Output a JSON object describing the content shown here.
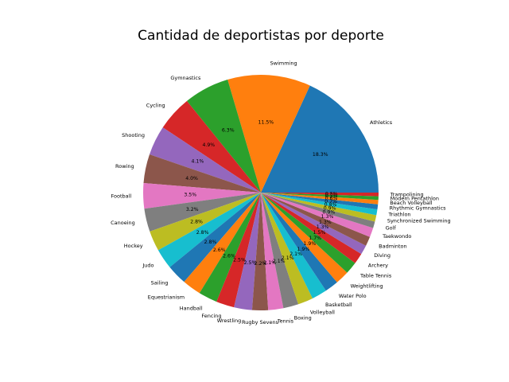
{
  "chart_data": {
    "type": "pie",
    "title": "Cantidad de deportistas por deporte",
    "start_angle_deg": 0,
    "direction": "counterclockwise",
    "colors": [
      "#1f77b4",
      "#ff7f0e",
      "#2ca02c",
      "#d62728",
      "#9467bd",
      "#8c564b",
      "#e377c2",
      "#7f7f7f",
      "#bcbd22",
      "#17becf"
    ],
    "slices": [
      {
        "label": "Athletics",
        "value": 18.3,
        "pct_label": "18.3%"
      },
      {
        "label": "Swimming",
        "value": 11.5,
        "pct_label": "11.5%"
      },
      {
        "label": "Gymnastics",
        "value": 6.3,
        "pct_label": "6.3%"
      },
      {
        "label": "Cycling",
        "value": 4.9,
        "pct_label": "4.9%"
      },
      {
        "label": "Shooting",
        "value": 4.1,
        "pct_label": "4.1%"
      },
      {
        "label": "Rowing",
        "value": 4.0,
        "pct_label": "4.0%"
      },
      {
        "label": "Football",
        "value": 3.5,
        "pct_label": "3.5%"
      },
      {
        "label": "Canoeing",
        "value": 3.2,
        "pct_label": "3.2%"
      },
      {
        "label": "Hockey",
        "value": 2.8,
        "pct_label": "2.8%"
      },
      {
        "label": "Judo",
        "value": 2.8,
        "pct_label": "2.8%"
      },
      {
        "label": "Sailing",
        "value": 2.8,
        "pct_label": "2.8%"
      },
      {
        "label": "Equestrianism",
        "value": 2.6,
        "pct_label": "2.6%"
      },
      {
        "label": "Handball",
        "value": 2.6,
        "pct_label": "2.6%"
      },
      {
        "label": "Fencing",
        "value": 2.5,
        "pct_label": "2.5%"
      },
      {
        "label": "Wrestling",
        "value": 2.5,
        "pct_label": "2.5%"
      },
      {
        "label": "Rugby Sevens",
        "value": 2.2,
        "pct_label": "2.2%"
      },
      {
        "label": "Tennis",
        "value": 2.1,
        "pct_label": "2.1%"
      },
      {
        "label": "Boxing",
        "value": 2.1,
        "pct_label": "2.1%"
      },
      {
        "label": "Volleyball",
        "value": 2.1,
        "pct_label": "2.1%"
      },
      {
        "label": "Basketball",
        "value": 2.1,
        "pct_label": "2.1%"
      },
      {
        "label": "Water Polo",
        "value": 1.9,
        "pct_label": "1.9%"
      },
      {
        "label": "Weightlifting",
        "value": 1.9,
        "pct_label": "1.9%"
      },
      {
        "label": "Table Tennis",
        "value": 1.7,
        "pct_label": "1.7%"
      },
      {
        "label": "Archery",
        "value": 1.5,
        "pct_label": "1.5%"
      },
      {
        "label": "Diving",
        "value": 1.3,
        "pct_label": "1.3%"
      },
      {
        "label": "Badminton",
        "value": 1.3,
        "pct_label": "1.3%"
      },
      {
        "label": "Taekwondo",
        "value": 1.3,
        "pct_label": "1.3%"
      },
      {
        "label": "Golf",
        "value": 0.9,
        "pct_label": "0.9%"
      },
      {
        "label": "Synchronized Swimming",
        "value": 0.9,
        "pct_label": "0.9%"
      },
      {
        "label": "Triathlon",
        "value": 0.8,
        "pct_label": "0.8%"
      },
      {
        "label": "Rhythmic Gymnastics",
        "value": 0.7,
        "pct_label": "0.7%"
      },
      {
        "label": "Beach Volleyball",
        "value": 0.6,
        "pct_label": "0.6%"
      },
      {
        "label": "Modern Pentathlon",
        "value": 0.5,
        "pct_label": "0.5%"
      },
      {
        "label": "Trampolining",
        "value": 0.5,
        "pct_label": "0.5%"
      }
    ]
  }
}
